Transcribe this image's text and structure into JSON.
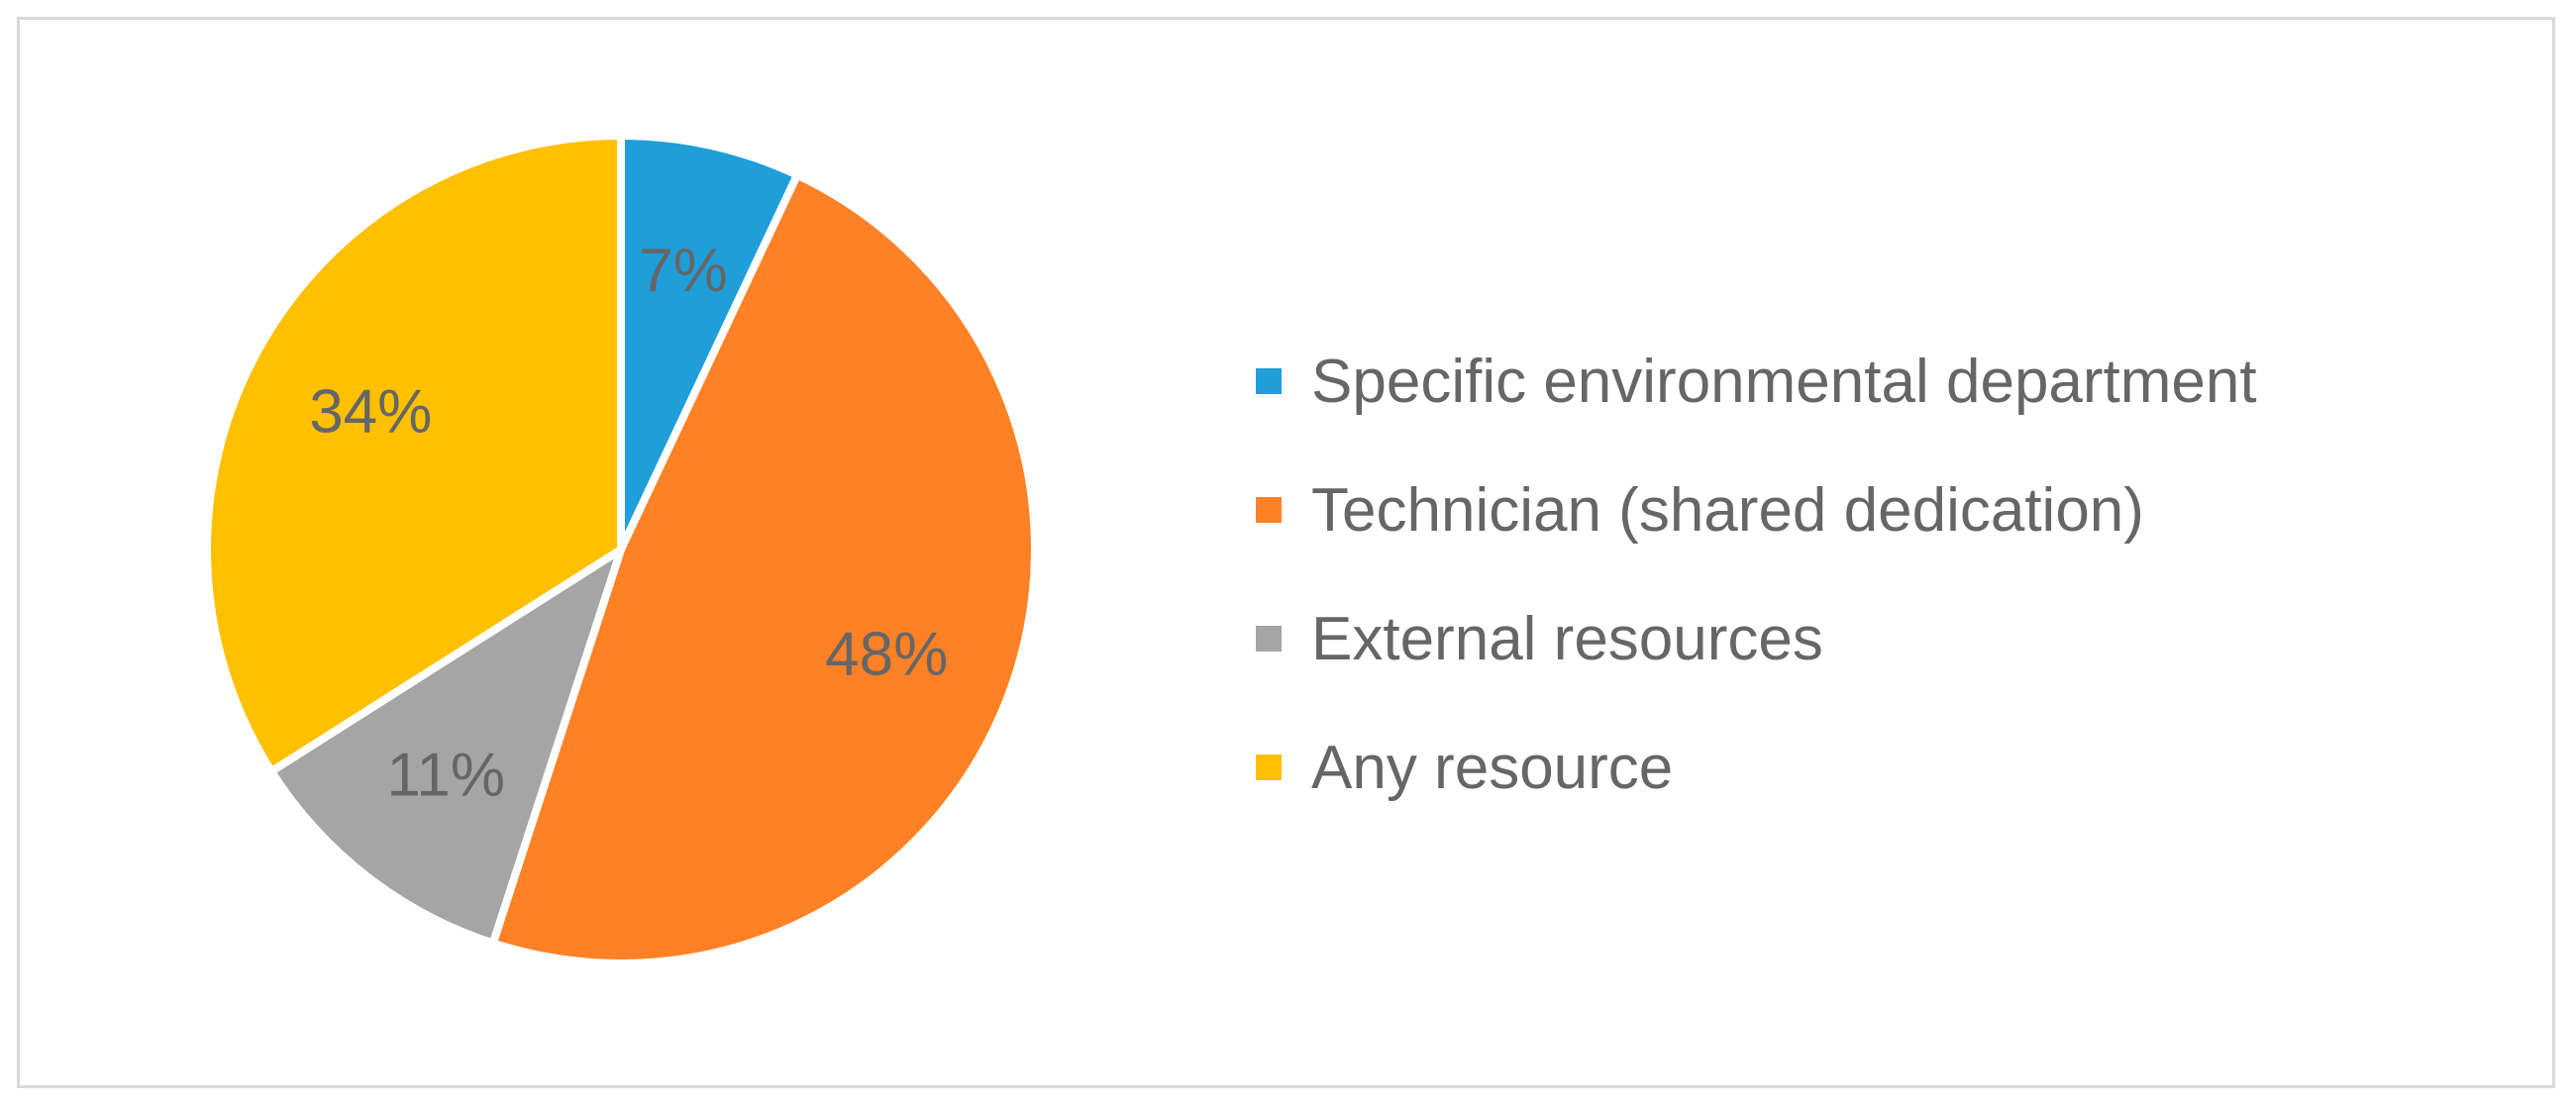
{
  "chart_data": {
    "type": "pie",
    "title": "",
    "slices": [
      {
        "label": "Specific environmental department",
        "value": 7,
        "display": "7%",
        "color": "#1f9ed9"
      },
      {
        "label": "Technician (shared dedication)",
        "value": 48,
        "display": "48%",
        "color": "#ff8125"
      },
      {
        "label": "External resources",
        "value": 11,
        "display": "11%",
        "color": "#a5a5a5"
      },
      {
        "label": "Any resource",
        "value": 34,
        "display": "34%",
        "color": "#ffc000"
      }
    ],
    "legend_placement": "right",
    "start_angle": "12 o'clock",
    "direction": "clockwise"
  }
}
